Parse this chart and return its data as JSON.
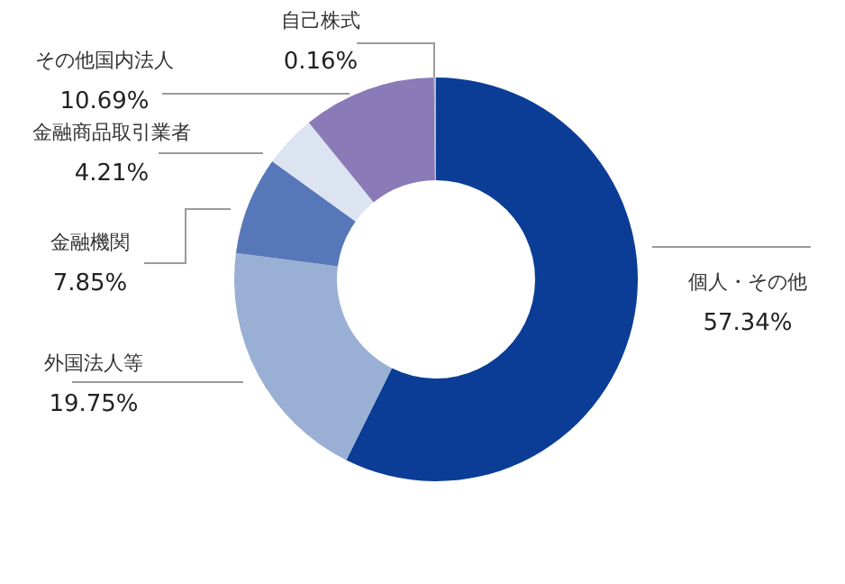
{
  "chart_data": {
    "type": "donut",
    "categories": [
      "個人・その他",
      "外国法人等",
      "金融機関",
      "金融商品取引業者",
      "その他国内法人",
      "自己株式"
    ],
    "values": [
      57.34,
      19.75,
      7.85,
      4.21,
      10.69,
      0.16
    ],
    "colors": [
      "#0b3d96",
      "#9aafd4",
      "#5677b8",
      "#dde4f1",
      "#8a7ab8",
      "#b8b8cc"
    ],
    "value_labels": [
      "57.34%",
      "19.75%",
      "7.85%",
      "4.21%",
      "10.69%",
      "0.16%"
    ]
  }
}
